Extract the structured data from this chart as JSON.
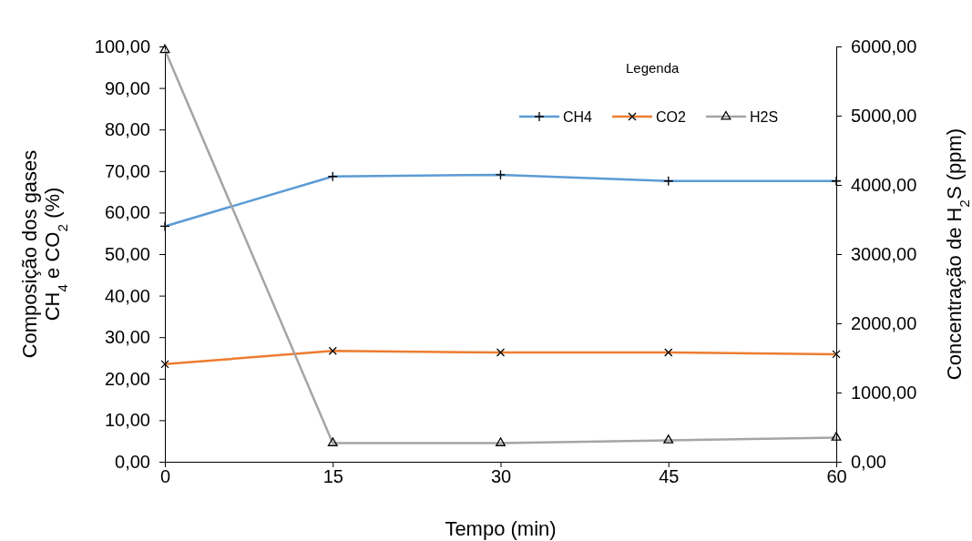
{
  "chart_data": {
    "type": "line",
    "xlabel": "Tempo (min)",
    "ylabel": "Composição  dos gases\nCH$_{4}$ e CO$_{2}$ (%)",
    "y2label": "Concentração de H$_{2}$S (ppm)",
    "legend_title": "Legenda",
    "legend": "top right",
    "grid": false,
    "x": [
      0,
      15,
      30,
      45,
      60
    ],
    "xlim": [
      0,
      60
    ],
    "xticks": [
      0,
      15,
      30,
      45,
      60
    ],
    "ylim": [
      0,
      100
    ],
    "yticks": [
      {
        "value": 0,
        "label": "0,00"
      },
      {
        "value": 10,
        "label": "10,00"
      },
      {
        "value": 20,
        "label": "20,00"
      },
      {
        "value": 30,
        "label": "30,00"
      },
      {
        "value": 40,
        "label": "40,00"
      },
      {
        "value": 50,
        "label": "50,00"
      },
      {
        "value": 60,
        "label": "60,00"
      },
      {
        "value": 70,
        "label": "70,00"
      },
      {
        "value": 80,
        "label": "80,00"
      },
      {
        "value": 90,
        "label": "90,00"
      },
      {
        "value": 100,
        "label": "100,00"
      }
    ],
    "y2lim": [
      0,
      6000
    ],
    "y2ticks": [
      {
        "value": 0,
        "label": "0,00"
      },
      {
        "value": 1000,
        "label": "1000,00"
      },
      {
        "value": 2000,
        "label": "2000,00"
      },
      {
        "value": 3000,
        "label": "3000,00"
      },
      {
        "value": 4000,
        "label": "4000,00"
      },
      {
        "value": 5000,
        "label": "5000,00"
      },
      {
        "value": 6000,
        "label": "6000,00"
      }
    ],
    "series": [
      {
        "name": "CH4",
        "color": "#5b9bd5",
        "marker": "cross",
        "values": [
          56.7,
          68.7,
          69.1,
          67.6,
          67.6
        ]
      },
      {
        "name": "CO2",
        "color": "#ed7d31",
        "marker": "x",
        "values": [
          23.5,
          26.7,
          26.3,
          26.3,
          25.9
        ]
      },
      {
        "name": "H2S",
        "color": "#a5a5a5",
        "marker": "triangle",
        "axis": "y2",
        "values": [
          5950,
          270,
          270,
          310,
          350
        ]
      }
    ]
  }
}
